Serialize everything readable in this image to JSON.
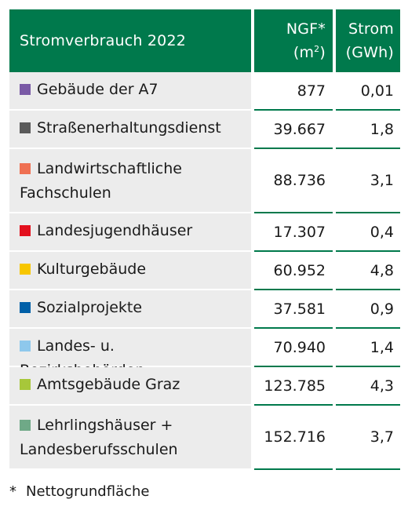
{
  "colors": {
    "header_bg": "#00794c",
    "rule": "#00794c",
    "label_bg": "#ececec"
  },
  "chart_data": {
    "type": "table",
    "title": "Stromverbrauch 2022",
    "columns": [
      {
        "line1": "NGF*",
        "line2_prefix": "(m",
        "line2_sup": "2",
        "line2_suffix": ")"
      },
      {
        "line1": "Strom",
        "line2_prefix": "(GWh)",
        "line2_sup": "",
        "line2_suffix": ""
      }
    ],
    "rows": [
      {
        "label": "Gebäude der A7",
        "color": "#7a5aa6",
        "ngf": "877",
        "strom": "0,01"
      },
      {
        "label": "Straßenerhaltungsdienst",
        "color": "#5a5a5a",
        "ngf": "39.667",
        "strom": "1,8"
      },
      {
        "label": "Landwirtschaftliche Fachschulen",
        "color": "#ef7052",
        "ngf": "88.736",
        "strom": "3,1"
      },
      {
        "label": "Landesjugendhäuser",
        "color": "#e3101e",
        "ngf": "17.307",
        "strom": "0,4"
      },
      {
        "label": "Kulturgebäude",
        "color": "#f7c600",
        "ngf": "60.952",
        "strom": "4,8"
      },
      {
        "label": "Sozialprojekte",
        "color": "#0060a8",
        "ngf": "37.581",
        "strom": "0,9"
      },
      {
        "label": "Landes- u. Bezirksbehörden",
        "color": "#8ec8ec",
        "ngf": "70.940",
        "strom": "1,4"
      },
      {
        "label": "Amtsgebäude Graz",
        "color": "#a7c73a",
        "ngf": "123.785",
        "strom": "4,3"
      },
      {
        "label": "Lehrlingshäuser + Landesberufsschulen",
        "color": "#6fa987",
        "ngf": "152.716",
        "strom": "3,7"
      }
    ],
    "footnote": {
      "mark": "*",
      "text": "Nettogrundfläche"
    }
  }
}
